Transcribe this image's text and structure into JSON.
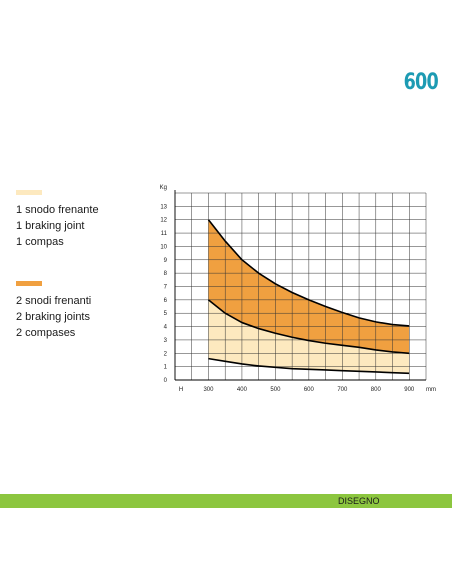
{
  "page": {
    "model_code": "600",
    "footer_label": "DISEGNO",
    "footer_color": "#8cc63f",
    "model_color": "#1d9bb3"
  },
  "legend": [
    {
      "swatch_color": "#fde9bf",
      "lines": [
        "1 snodo frenante",
        "1 braking joint",
        "1 compas"
      ]
    },
    {
      "swatch_color": "#f0a040",
      "lines": [
        "2 snodi frenanti",
        "2 braking joints",
        "2 compases"
      ]
    }
  ],
  "chart_data": {
    "type": "area",
    "ylabel": "Kg",
    "xlabel": "mm",
    "x_axis_prefix": "H",
    "x": [
      300,
      350,
      400,
      450,
      500,
      550,
      600,
      650,
      700,
      750,
      800,
      850,
      900
    ],
    "x_ticks": [
      300,
      400,
      500,
      600,
      700,
      800,
      900
    ],
    "y_ticks": [
      0,
      1,
      2,
      3,
      4,
      5,
      6,
      7,
      8,
      9,
      10,
      11,
      12,
      13
    ],
    "xlim": [
      200,
      950
    ],
    "ylim": [
      0,
      14
    ],
    "grid": true,
    "series": [
      {
        "values": [
          1.6,
          1.4,
          1.2,
          1.05,
          0.95,
          0.85,
          0.8,
          0.75,
          0.7,
          0.65,
          0.6,
          0.55,
          0.5
        ],
        "color": "#000000"
      },
      {
        "values": [
          6.0,
          5.0,
          4.3,
          3.85,
          3.5,
          3.2,
          2.95,
          2.75,
          2.6,
          2.45,
          2.25,
          2.1,
          2.0
        ],
        "color": "#000000"
      },
      {
        "values": [
          12.0,
          10.4,
          9.0,
          8.0,
          7.2,
          6.55,
          6.0,
          5.5,
          5.05,
          4.65,
          4.35,
          4.15,
          4.05
        ],
        "color": "#000000"
      }
    ],
    "band_colors": {
      "light": "#fde9bf",
      "dark": "#f0a040"
    }
  }
}
